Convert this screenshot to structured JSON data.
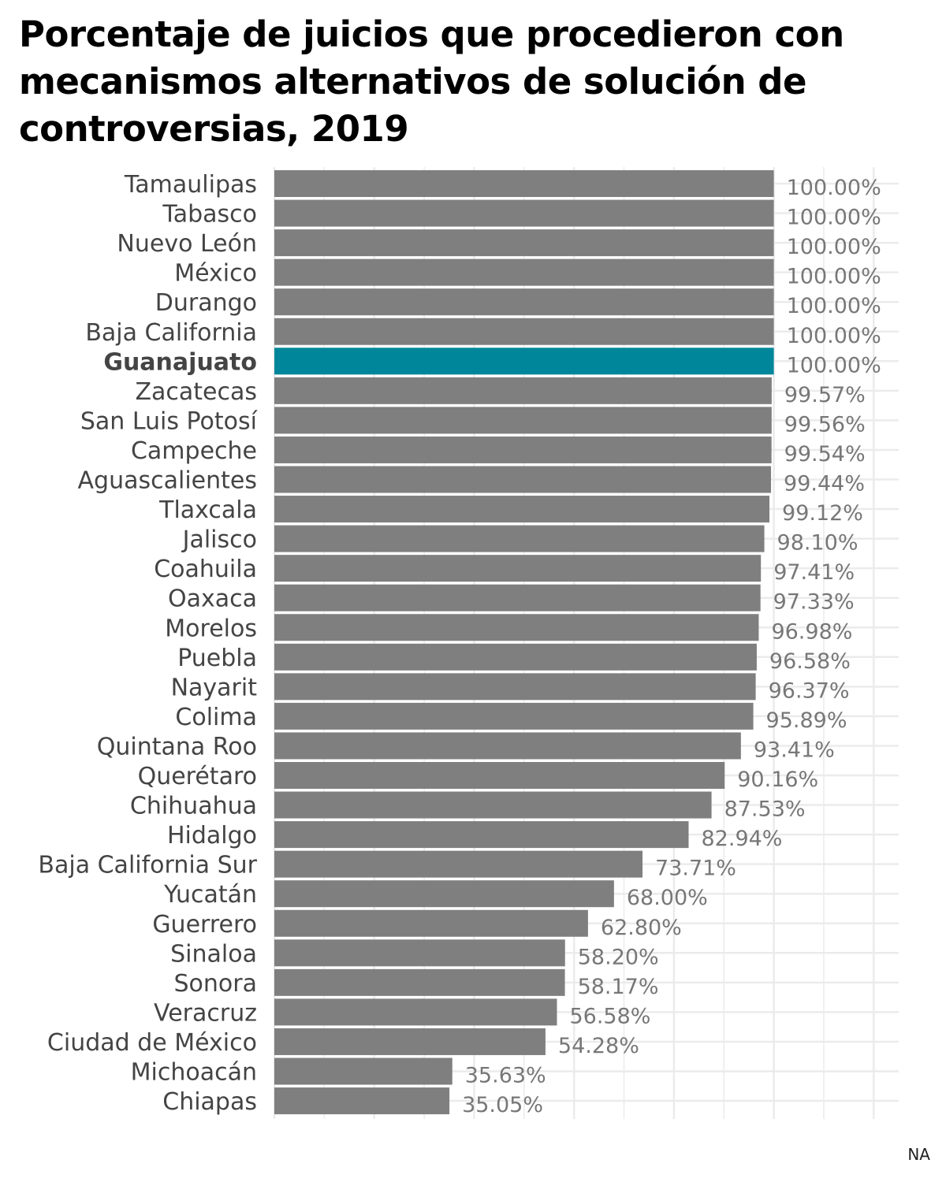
{
  "chart_data": {
    "type": "bar",
    "orientation": "horizontal",
    "title": "Porcentaje de juicios que procedieron con mecanismos alternativos de solución de controversias, 2019",
    "categories": [
      "Tamaulipas",
      "Tabasco",
      "Nuevo León",
      "México",
      "Durango",
      "Baja California",
      "Guanajuato",
      "Zacatecas",
      "San Luis Potosí",
      "Campeche",
      "Aguascalientes",
      "Tlaxcala",
      "Jalisco",
      "Coahuila",
      "Oaxaca",
      "Morelos",
      "Puebla",
      "Nayarit",
      "Colima",
      "Quintana Roo",
      "Querétaro",
      "Chihuahua",
      "Hidalgo",
      "Baja California Sur",
      "Yucatán",
      "Guerrero",
      "Sinaloa",
      "Sonora",
      "Veracruz",
      "Ciudad de México",
      "Michoacán",
      "Chiapas"
    ],
    "values": [
      100.0,
      100.0,
      100.0,
      100.0,
      100.0,
      100.0,
      100.0,
      99.57,
      99.56,
      99.54,
      99.44,
      99.12,
      98.1,
      97.41,
      97.33,
      96.98,
      96.58,
      96.37,
      95.89,
      93.41,
      90.16,
      87.53,
      82.94,
      73.71,
      68.0,
      62.8,
      58.2,
      58.17,
      56.58,
      54.28,
      35.63,
      35.05
    ],
    "value_labels": [
      "100.00%",
      "100.00%",
      "100.00%",
      "100.00%",
      "100.00%",
      "100.00%",
      "100.00%",
      "99.57%",
      "99.56%",
      "99.54%",
      "99.44%",
      "99.12%",
      "98.10%",
      "97.41%",
      "97.33%",
      "96.98%",
      "96.58%",
      "96.37%",
      "95.89%",
      "93.41%",
      "90.16%",
      "87.53%",
      "82.94%",
      "73.71%",
      "68.00%",
      "62.80%",
      "58.20%",
      "58.17%",
      "56.58%",
      "54.28%",
      "35.63%",
      "35.05%"
    ],
    "highlight": "Guanajuato",
    "xlim": [
      0,
      125
    ],
    "grid": true,
    "legend": "none",
    "xlabel": "",
    "ylabel": "",
    "colors": {
      "bar": "#7f7f7f",
      "highlight": "#00869a",
      "label": "#444444",
      "value_label": "#777777",
      "grid": "#ebebeb"
    }
  },
  "caption": "NA"
}
